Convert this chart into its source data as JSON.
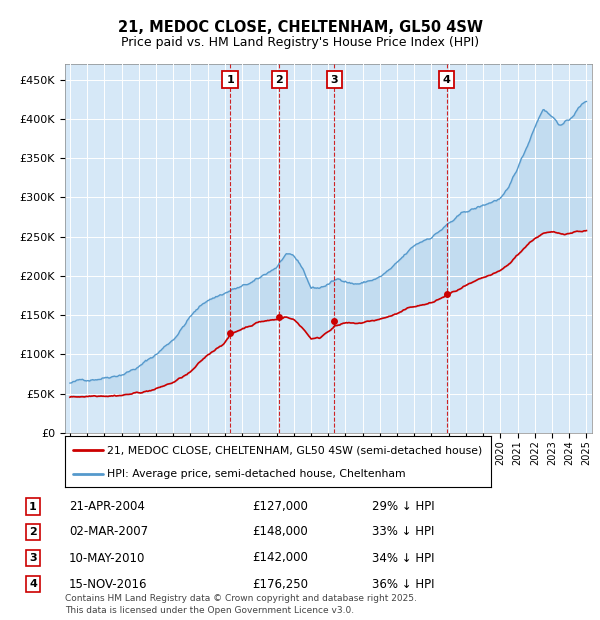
{
  "title": "21, MEDOC CLOSE, CHELTENHAM, GL50 4SW",
  "subtitle": "Price paid vs. HM Land Registry's House Price Index (HPI)",
  "bg_color": "#d6e8f7",
  "ylabel_ticks": [
    "£0",
    "£50K",
    "£100K",
    "£150K",
    "£200K",
    "£250K",
    "£300K",
    "£350K",
    "£400K",
    "£450K"
  ],
  "ytick_vals": [
    0,
    50000,
    100000,
    150000,
    200000,
    250000,
    300000,
    350000,
    400000,
    450000
  ],
  "ylim": [
    0,
    470000
  ],
  "xlim_start": 1994.7,
  "xlim_end": 2025.3,
  "sale_markers": [
    {
      "num": 1,
      "year": 2004.3,
      "price": 127000,
      "label": "1",
      "date": "21-APR-2004",
      "pct": "29%"
    },
    {
      "num": 2,
      "year": 2007.17,
      "price": 148000,
      "label": "2",
      "date": "02-MAR-2007",
      "pct": "33%"
    },
    {
      "num": 3,
      "year": 2010.36,
      "price": 142000,
      "label": "3",
      "date": "10-MAY-2010",
      "pct": "34%"
    },
    {
      "num": 4,
      "year": 2016.88,
      "price": 176250,
      "label": "4",
      "date": "15-NOV-2016",
      "pct": "36%"
    }
  ],
  "legend_line1": "21, MEDOC CLOSE, CHELTENHAM, GL50 4SW (semi-detached house)",
  "legend_line2": "HPI: Average price, semi-detached house, Cheltenham",
  "footer": "Contains HM Land Registry data © Crown copyright and database right 2025.\nThis data is licensed under the Open Government Licence v3.0.",
  "table_rows": [
    {
      "num": "1",
      "date": "21-APR-2004",
      "price": "£127,000",
      "pct": "29% ↓ HPI"
    },
    {
      "num": "2",
      "date": "02-MAR-2007",
      "price": "£148,000",
      "pct": "33% ↓ HPI"
    },
    {
      "num": "3",
      "date": "10-MAY-2010",
      "price": "£142,000",
      "pct": "34% ↓ HPI"
    },
    {
      "num": "4",
      "date": "15-NOV-2016",
      "price": "£176,250",
      "pct": "36% ↓ HPI"
    }
  ],
  "red_line_color": "#cc0000",
  "blue_line_color": "#5599cc",
  "blue_fill_color": "#b8d4ee",
  "dashed_color": "#cc0000",
  "hpi_segments": [
    [
      1995.0,
      63000
    ],
    [
      1996.0,
      67000
    ],
    [
      1997.0,
      73000
    ],
    [
      1998.0,
      80000
    ],
    [
      1999.0,
      90000
    ],
    [
      2000.0,
      105000
    ],
    [
      2001.0,
      125000
    ],
    [
      2002.0,
      155000
    ],
    [
      2003.0,
      175000
    ],
    [
      2004.0,
      185000
    ],
    [
      2004.5,
      190000
    ],
    [
      2005.0,
      192000
    ],
    [
      2006.0,
      200000
    ],
    [
      2007.0,
      215000
    ],
    [
      2007.5,
      230000
    ],
    [
      2008.0,
      225000
    ],
    [
      2008.5,
      210000
    ],
    [
      2009.0,
      185000
    ],
    [
      2009.5,
      185000
    ],
    [
      2010.0,
      190000
    ],
    [
      2010.5,
      195000
    ],
    [
      2011.0,
      195000
    ],
    [
      2011.5,
      192000
    ],
    [
      2012.0,
      193000
    ],
    [
      2013.0,
      200000
    ],
    [
      2014.0,
      215000
    ],
    [
      2015.0,
      235000
    ],
    [
      2016.0,
      248000
    ],
    [
      2017.0,
      265000
    ],
    [
      2018.0,
      278000
    ],
    [
      2019.0,
      285000
    ],
    [
      2020.0,
      295000
    ],
    [
      2020.5,
      305000
    ],
    [
      2021.0,
      330000
    ],
    [
      2021.5,
      355000
    ],
    [
      2022.0,
      385000
    ],
    [
      2022.5,
      410000
    ],
    [
      2023.0,
      400000
    ],
    [
      2023.5,
      390000
    ],
    [
      2024.0,
      395000
    ],
    [
      2024.5,
      410000
    ],
    [
      2025.0,
      420000
    ]
  ],
  "pp_segments": [
    [
      1995.0,
      45000
    ],
    [
      1996.0,
      47000
    ],
    [
      1997.0,
      50000
    ],
    [
      1998.0,
      52000
    ],
    [
      1999.0,
      55000
    ],
    [
      2000.0,
      60000
    ],
    [
      2001.0,
      68000
    ],
    [
      2002.0,
      80000
    ],
    [
      2003.0,
      100000
    ],
    [
      2004.0,
      118000
    ],
    [
      2004.3,
      127000
    ],
    [
      2005.0,
      135000
    ],
    [
      2006.0,
      145000
    ],
    [
      2007.17,
      148000
    ],
    [
      2007.5,
      152000
    ],
    [
      2008.0,
      148000
    ],
    [
      2008.5,
      138000
    ],
    [
      2009.0,
      125000
    ],
    [
      2009.5,
      125000
    ],
    [
      2010.36,
      142000
    ],
    [
      2011.0,
      145000
    ],
    [
      2011.5,
      143000
    ],
    [
      2012.0,
      144000
    ],
    [
      2013.0,
      148000
    ],
    [
      2014.0,
      155000
    ],
    [
      2015.0,
      163000
    ],
    [
      2016.0,
      167000
    ],
    [
      2016.88,
      176250
    ],
    [
      2017.5,
      182000
    ],
    [
      2018.0,
      187000
    ],
    [
      2019.0,
      193000
    ],
    [
      2020.0,
      200000
    ],
    [
      2020.5,
      208000
    ],
    [
      2021.0,
      220000
    ],
    [
      2021.5,
      232000
    ],
    [
      2022.0,
      242000
    ],
    [
      2022.5,
      248000
    ],
    [
      2023.0,
      248000
    ],
    [
      2023.5,
      246000
    ],
    [
      2024.0,
      248000
    ],
    [
      2024.5,
      251000
    ],
    [
      2025.0,
      252000
    ]
  ]
}
